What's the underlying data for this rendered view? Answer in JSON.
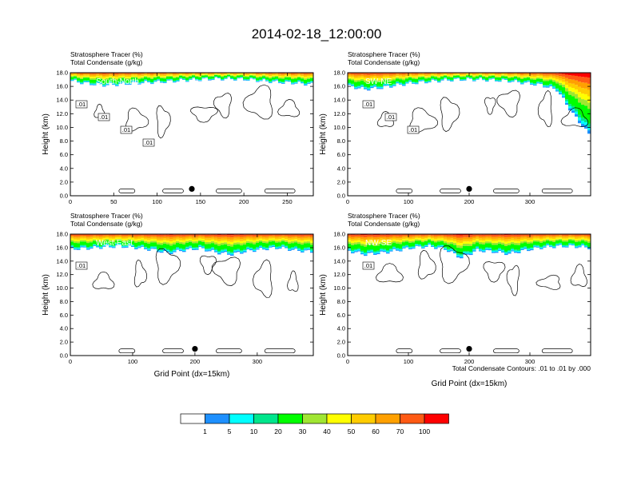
{
  "title": "2014-02-18_12:00:00",
  "colors": {
    "levels": [
      "#ffffff",
      "#1e90ff",
      "#00ffff",
      "#00e68c",
      "#00ff00",
      "#a0e632",
      "#ffff00",
      "#ffcc00",
      "#ffa000",
      "#ff5a14",
      "#ff0000"
    ],
    "contour": "#000000"
  },
  "colorbar": {
    "labels": [
      "1",
      "5",
      "10",
      "20",
      "30",
      "40",
      "50",
      "60",
      "70",
      "100"
    ]
  },
  "footnote": "Total Condensate Contours: .01 to .01 by .000",
  "chart_data": [
    {
      "type": "heatmap",
      "id": "south-north",
      "panel_label": "South-North",
      "header_line1": "Stratosphere Tracer   (%)",
      "header_line2": "Total Condensate   (g/kg)",
      "ylabel": "Height (km)",
      "xlabel": "",
      "xlim": [
        0,
        280
      ],
      "ylim": [
        0,
        18
      ],
      "xticks": [
        "0",
        "50",
        "100",
        "150",
        "200",
        "250"
      ],
      "yticks": [
        "0.0",
        "2.0",
        "4.0",
        "6.0",
        "8.0",
        "10.0",
        "12.0",
        "14.0",
        "16.0",
        "18.0"
      ],
      "tracer_base_km": [
        16.8,
        16.4,
        16.2,
        16.3,
        16.5,
        16.6,
        16.7,
        16.9,
        17.0,
        17.1,
        17.1,
        17.0,
        16.8,
        16.6,
        16.5,
        16.3
      ],
      "contour_labels": [
        ".01",
        ".01",
        ".01",
        ".01"
      ],
      "marker": {
        "x": 140,
        "y": 1.0
      }
    },
    {
      "type": "heatmap",
      "id": "sw-ne",
      "panel_label": "SW-NE",
      "header_line1": "Stratosphere Tracer   (%)",
      "header_line2": "Total Condensate   (g/kg)",
      "ylabel": "Height (km)",
      "xlabel": "",
      "xlim": [
        0,
        400
      ],
      "ylim": [
        0,
        18
      ],
      "xticks": [
        "0",
        "100",
        "200",
        "300"
      ],
      "yticks": [
        "0.0",
        "2.0",
        "4.0",
        "6.0",
        "8.0",
        "10.0",
        "12.0",
        "14.0",
        "16.0",
        "18.0"
      ],
      "tracer_base_km": [
        16.0,
        15.6,
        15.8,
        16.2,
        16.5,
        16.7,
        16.9,
        17.0,
        17.0,
        16.9,
        16.8,
        16.5,
        16.2,
        15.5,
        12.0,
        9.0
      ],
      "contour_labels": [
        ".01",
        ".01",
        ".01"
      ],
      "marker": {
        "x": 200,
        "y": 1.0
      }
    },
    {
      "type": "heatmap",
      "id": "west-east",
      "panel_label": "West-East",
      "header_line1": "Stratosphere Tracer   (%)",
      "header_line2": "Total Condensate   (g/kg)",
      "ylabel": "Height (km)",
      "xlabel": "Grid Point (dx=15km)",
      "xlim": [
        0,
        390
      ],
      "ylim": [
        0,
        18
      ],
      "xticks": [
        "0",
        "100",
        "200",
        "300"
      ],
      "yticks": [
        "0.0",
        "2.0",
        "4.0",
        "6.0",
        "8.0",
        "10.0",
        "12.0",
        "14.0",
        "16.0",
        "18.0"
      ],
      "tracer_base_km": [
        15.8,
        15.9,
        16.1,
        16.2,
        16.0,
        15.7,
        15.2,
        15.6,
        15.9,
        15.3,
        15.0,
        15.5,
        15.8,
        16.0,
        15.6,
        15.4
      ],
      "contour_labels": [
        ".01"
      ],
      "marker": {
        "x": 200,
        "y": 1.0
      }
    },
    {
      "type": "heatmap",
      "id": "nw-se",
      "panel_label": "NW-SE",
      "header_line1": "Stratosphere Tracer   (%)",
      "header_line2": "Total Condensate   (g/kg)",
      "ylabel": "Height (km)",
      "xlabel": "Grid Point (dx=15km)",
      "xlim": [
        0,
        400
      ],
      "ylim": [
        0,
        18
      ],
      "xticks": [
        "0",
        "100",
        "200",
        "300"
      ],
      "yticks": [
        "0.0",
        "2.0",
        "4.0",
        "6.0",
        "8.0",
        "10.0",
        "12.0",
        "14.0",
        "16.0",
        "18.0"
      ],
      "tracer_base_km": [
        15.5,
        15.0,
        15.2,
        15.6,
        16.0,
        16.2,
        15.8,
        14.5,
        15.6,
        15.4,
        15.1,
        15.6,
        16.0,
        16.2,
        16.2,
        16.0
      ],
      "contour_labels": [
        ".01"
      ],
      "marker": {
        "x": 200,
        "y": 1.0
      }
    }
  ]
}
